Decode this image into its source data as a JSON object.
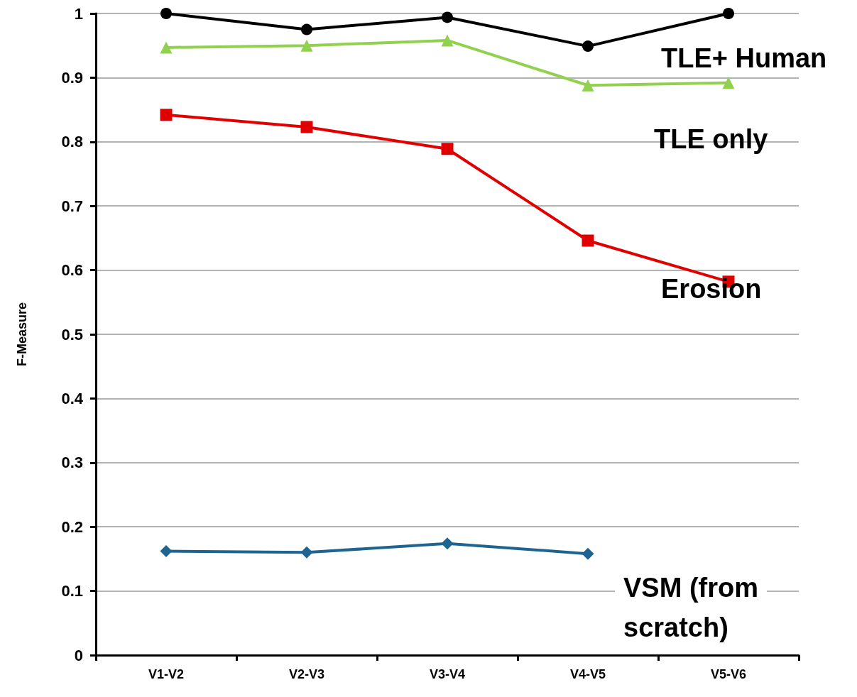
{
  "chart_data": {
    "type": "line",
    "ylabel": "F-Measure",
    "categories": [
      "V1-V2",
      "V2-V3",
      "V3-V4",
      "V4-V5",
      "V5-V6"
    ],
    "ylim": [
      0,
      1
    ],
    "yticks": [
      0,
      0.1,
      0.2,
      0.3,
      0.4,
      0.5,
      0.6,
      0.7,
      0.8,
      0.9,
      1
    ],
    "grid": "y",
    "legend": false,
    "line_style": "solid",
    "series": [
      {
        "name": "TLE+ Human",
        "color": "#000000",
        "marker": "circle",
        "values": [
          1,
          0.975,
          0.994,
          0.949,
          1
        ]
      },
      {
        "name": "TLE only",
        "color": "#92d050",
        "marker": "triangle",
        "values": [
          0.947,
          0.95,
          0.958,
          0.888,
          0.892
        ]
      },
      {
        "name": "Erosion",
        "color": "#e00000",
        "marker": "square",
        "values": [
          0.842,
          0.823,
          0.789,
          0.646,
          0.582
        ]
      },
      {
        "name": "VSM (from scratch)",
        "color": "#1f6391",
        "marker": "diamond",
        "values": [
          0.162,
          0.16,
          0.174,
          0.158,
          null
        ]
      }
    ]
  }
}
